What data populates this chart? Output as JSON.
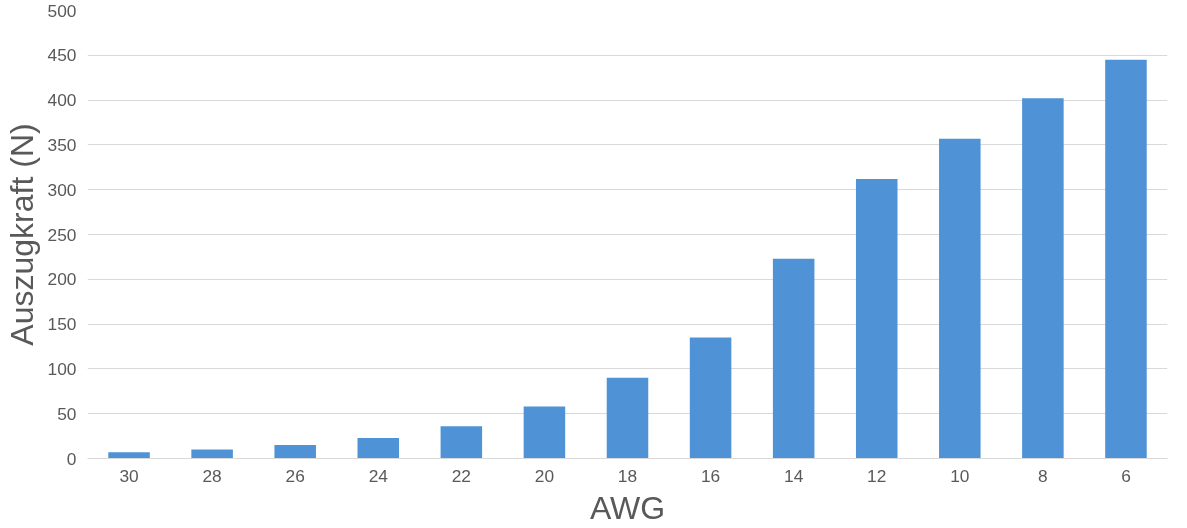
{
  "chart_data": {
    "type": "bar",
    "xlabel": "AWG",
    "ylabel": "Auszugkraft (N)",
    "categories": [
      "30",
      "28",
      "26",
      "24",
      "22",
      "20",
      "18",
      "16",
      "14",
      "12",
      "10",
      "8",
      "6"
    ],
    "values": [
      7,
      10,
      15,
      23,
      36,
      58,
      90,
      135,
      223,
      312,
      357,
      402,
      445
    ],
    "color": "#4f93d6",
    "ylim": [
      0,
      500
    ],
    "yticks": [
      0,
      50,
      100,
      150,
      200,
      250,
      300,
      350,
      400,
      450,
      500
    ],
    "grid": "y"
  }
}
